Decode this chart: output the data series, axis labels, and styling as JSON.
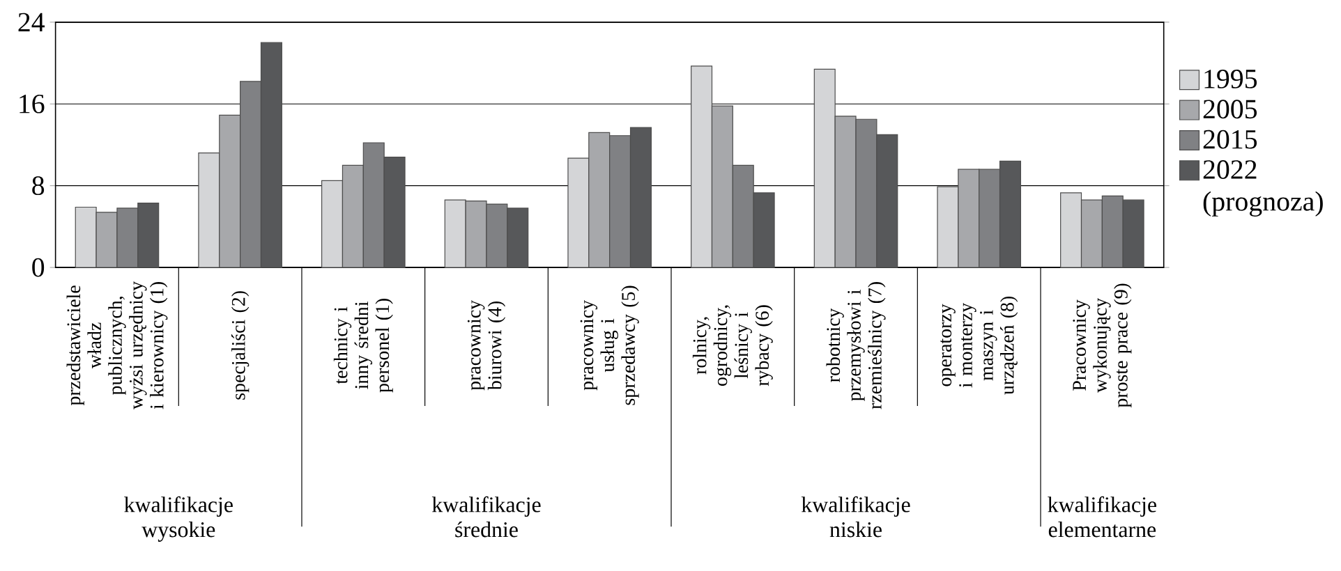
{
  "chart_data": {
    "type": "bar",
    "categories": [
      "przedstawiciele władz publicznych, wyżsi urzędnicy i kierownicy (1)",
      "specjaliści (2)",
      "technicy i inny średni personel (1)",
      "pracownicy biurowi (4)",
      "pracownicy usług i sprzedawcy (5)",
      "rolnicy, ogrodnicy, leśnicy i rybacy (6)",
      "robotnicy przemysłowi i rzemieślnicy (7)",
      "operatorzy i monterzy maszyn i urządzeń (8)",
      "Pracownicy wykonujący proste prace (9)"
    ],
    "series": [
      {
        "name": "1995",
        "color": "#d4d5d7",
        "values": [
          5.9,
          11.2,
          8.5,
          6.6,
          10.7,
          19.7,
          19.4,
          7.9,
          7.3
        ]
      },
      {
        "name": "2005",
        "color": "#a7a8ab",
        "values": [
          5.4,
          14.9,
          10.0,
          6.5,
          13.2,
          15.8,
          14.8,
          9.6,
          6.6
        ]
      },
      {
        "name": "2015",
        "color": "#808184",
        "values": [
          5.8,
          18.2,
          12.2,
          6.2,
          12.9,
          10.0,
          14.5,
          9.6,
          7.0
        ]
      },
      {
        "name": "2022 (prognoza)",
        "color": "#57585a",
        "values": [
          6.3,
          22.0,
          10.8,
          5.8,
          13.7,
          7.3,
          13.0,
          10.4,
          6.6
        ]
      }
    ],
    "ylim": [
      0,
      24
    ],
    "yticks": [
      0,
      8,
      16,
      24
    ],
    "grid": "y",
    "legend": "right",
    "annotations": [
      "kwalifikacje wysokie",
      "kwalifikacje średnie",
      "kwalifikacje niskie",
      "kwalifikacje elementarne"
    ]
  }
}
